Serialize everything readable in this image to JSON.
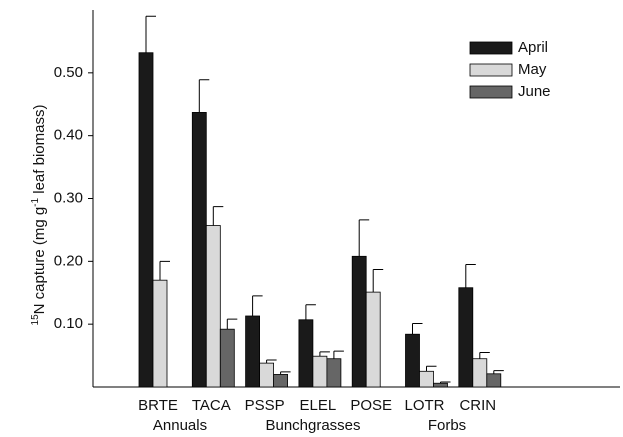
{
  "chart_data": {
    "type": "bar",
    "ylabel": [
      "15",
      "N capture (mg g",
      "-1",
      " leaf biomass)"
    ],
    "categories": [
      "BRTE",
      "TACA",
      "PSSP",
      "ELEL",
      "POSE",
      "LOTR",
      "CRIN"
    ],
    "group_labels": [
      "Annuals",
      "Bunchgrasses",
      "Forbs"
    ],
    "series": [
      {
        "name": "April",
        "color": "#1a1a1a",
        "values": [
          0.532,
          0.437,
          0.113,
          0.107,
          0.208,
          0.084,
          0.158
        ],
        "errors": [
          0.058,
          0.052,
          0.032,
          0.024,
          0.058,
          0.017,
          0.037
        ]
      },
      {
        "name": "May",
        "color": "#d9d9d9",
        "values": [
          0.17,
          0.257,
          0.038,
          0.049,
          0.151,
          0.025,
          0.045
        ],
        "errors": [
          0.03,
          0.03,
          0.005,
          0.007,
          0.036,
          0.008,
          0.01
        ]
      },
      {
        "name": "June",
        "color": "#666666",
        "values": [
          null,
          0.092,
          0.02,
          0.045,
          null,
          0.006,
          0.021
        ],
        "errors": [
          null,
          0.016,
          0.004,
          0.012,
          null,
          0.002,
          0.005
        ]
      }
    ],
    "ylim": [
      0,
      0.6
    ],
    "yticks": [
      {
        "value": 0.1,
        "label": "0.10"
      },
      {
        "value": 0.2,
        "label": "0.20"
      },
      {
        "value": 0.3,
        "label": "0.30"
      },
      {
        "value": 0.4,
        "label": "0.40"
      },
      {
        "value": 0.5,
        "label": "0.50"
      }
    ],
    "legend": "top-right"
  }
}
